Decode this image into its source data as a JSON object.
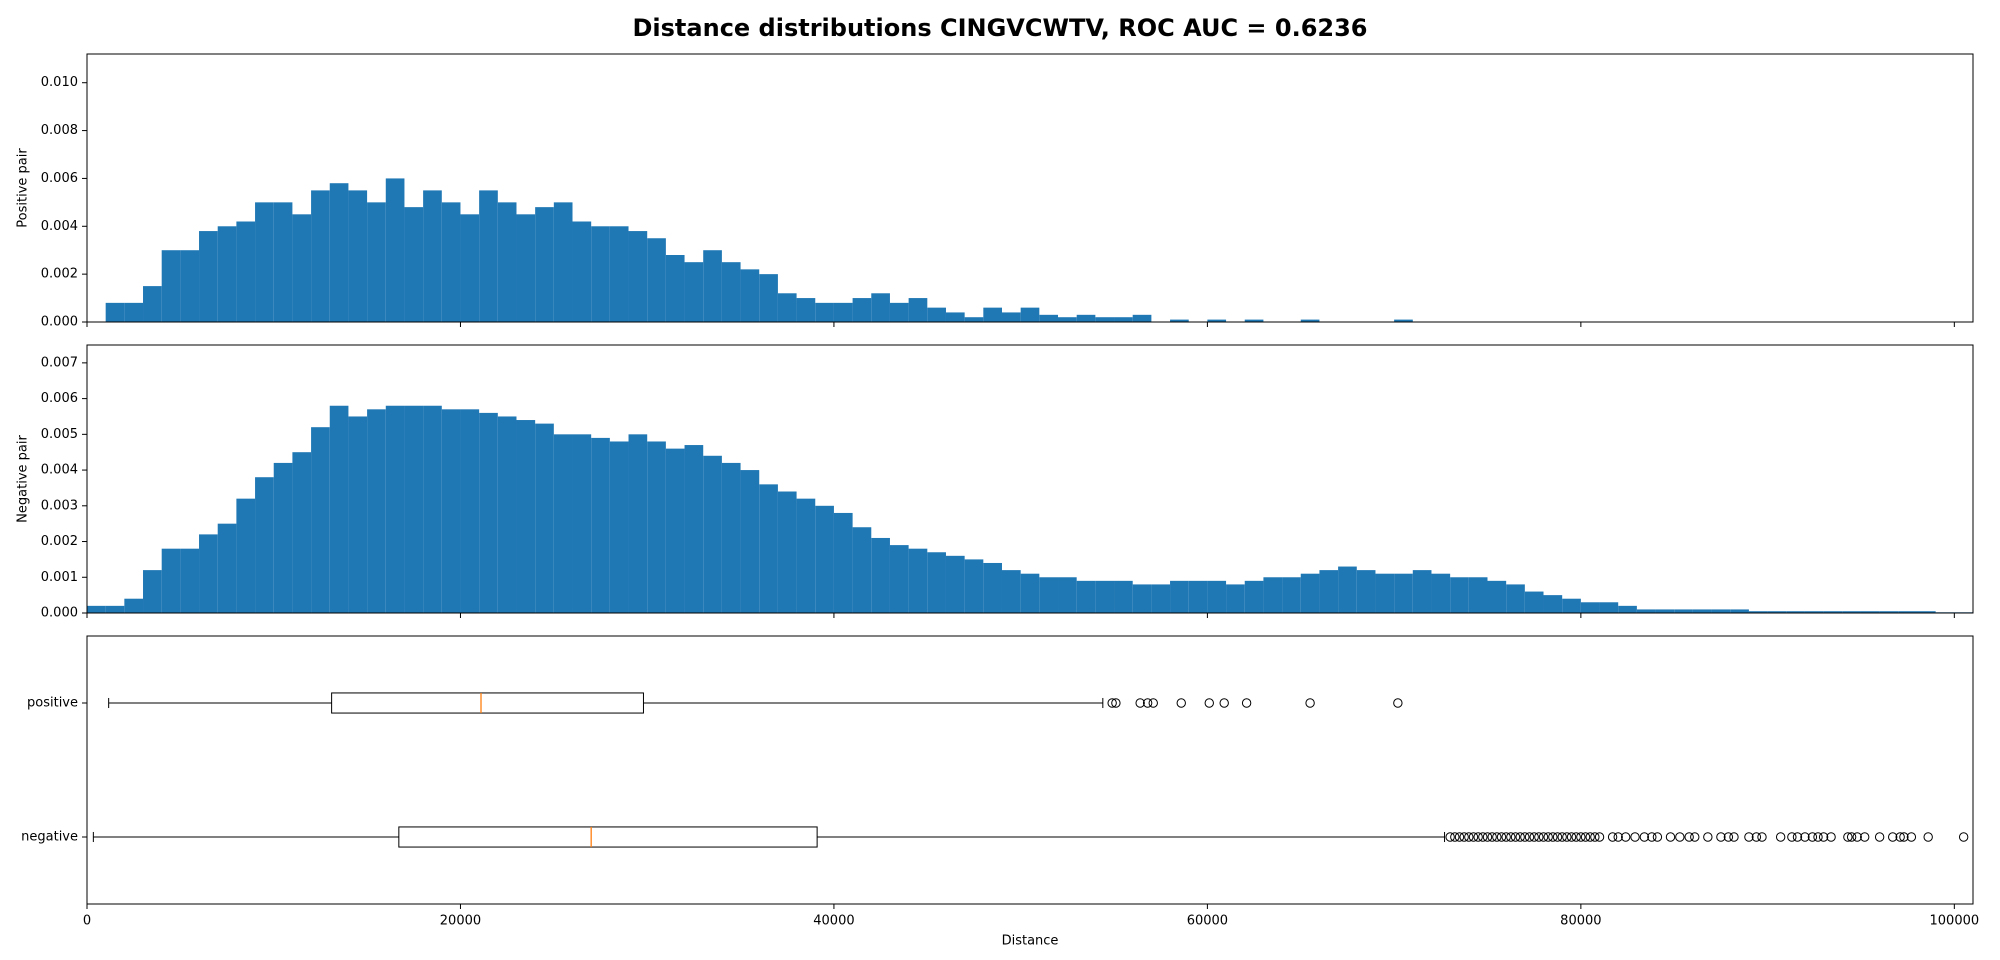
{
  "title": "Distance distributions CINGVCWTV, ROC AUC = 0.6236",
  "chart_data": [
    {
      "type": "histogram",
      "ylabel": "Positive pair",
      "color": "#1f77b4",
      "bins": [
        1000,
        2000,
        3000,
        4000,
        5000,
        6000,
        7000,
        8000,
        9000,
        10000,
        11000,
        12000,
        13000,
        14000,
        15000,
        16000,
        17000,
        18000,
        19000,
        20000,
        21000,
        22000,
        23000,
        24000,
        25000,
        26000,
        27000,
        28000,
        29000,
        30000,
        31000,
        32000,
        33000,
        34000,
        35000,
        36000,
        37000,
        38000,
        39000,
        40000,
        41000,
        42000,
        43000,
        44000,
        45000,
        46000,
        47000,
        48000,
        49000,
        50000,
        51000,
        52000,
        53000,
        54000,
        55000,
        56000,
        57000,
        58000,
        59000,
        60000,
        61000,
        62000,
        63000,
        64000,
        65000,
        66000,
        67000,
        68000,
        69000,
        70000,
        71000
      ],
      "values": [
        0.0008,
        0.0008,
        0.0015,
        0.003,
        0.003,
        0.0038,
        0.004,
        0.0042,
        0.005,
        0.005,
        0.0045,
        0.0055,
        0.0058,
        0.0055,
        0.005,
        0.006,
        0.0048,
        0.0055,
        0.005,
        0.0045,
        0.0055,
        0.005,
        0.0045,
        0.0048,
        0.005,
        0.0042,
        0.004,
        0.004,
        0.0038,
        0.0035,
        0.0028,
        0.0025,
        0.003,
        0.0025,
        0.0022,
        0.002,
        0.0012,
        0.001,
        0.0008,
        0.0008,
        0.001,
        0.0012,
        0.0008,
        0.001,
        0.0006,
        0.0004,
        0.0002,
        0.0006,
        0.0004,
        0.0006,
        0.0003,
        0.0002,
        0.0003,
        0.0002,
        0.0002,
        0.0003,
        0,
        0.0001,
        0,
        0.0001,
        0,
        0.0001,
        0,
        0,
        0.0001,
        0,
        0,
        0,
        0,
        0.0001
      ],
      "ylim": [
        0,
        0.0112
      ],
      "yticks": [
        {
          "value": 0,
          "label": "0.000"
        },
        {
          "value": 0.002,
          "label": "0.002"
        },
        {
          "value": 0.004,
          "label": "0.004"
        },
        {
          "value": 0.006,
          "label": "0.006"
        },
        {
          "value": 0.008,
          "label": "0.008"
        },
        {
          "value": 0.01,
          "label": "0.010"
        }
      ]
    },
    {
      "type": "histogram",
      "ylabel": "Negative pair",
      "color": "#1f77b4",
      "bins": [
        0,
        1000,
        2000,
        3000,
        4000,
        5000,
        6000,
        7000,
        8000,
        9000,
        10000,
        11000,
        12000,
        13000,
        14000,
        15000,
        16000,
        17000,
        18000,
        19000,
        20000,
        21000,
        22000,
        23000,
        24000,
        25000,
        26000,
        27000,
        28000,
        29000,
        30000,
        31000,
        32000,
        33000,
        34000,
        35000,
        36000,
        37000,
        38000,
        39000,
        40000,
        41000,
        42000,
        43000,
        44000,
        45000,
        46000,
        47000,
        48000,
        49000,
        50000,
        51000,
        52000,
        53000,
        54000,
        55000,
        56000,
        57000,
        58000,
        59000,
        60000,
        61000,
        62000,
        63000,
        64000,
        65000,
        66000,
        67000,
        68000,
        69000,
        70000,
        71000,
        72000,
        73000,
        74000,
        75000,
        76000,
        77000,
        78000,
        79000,
        80000,
        81000,
        82000,
        83000,
        84000,
        85000,
        86000,
        87000,
        88000,
        89000,
        90000,
        91000,
        92000,
        93000,
        94000,
        95000,
        96000,
        97000,
        98000,
        99000,
        100000,
        101000
      ],
      "values": [
        0.0002,
        0.0002,
        0.0004,
        0.0012,
        0.0018,
        0.0018,
        0.0022,
        0.0025,
        0.0032,
        0.0038,
        0.0042,
        0.0045,
        0.0052,
        0.0058,
        0.0055,
        0.0057,
        0.0058,
        0.0058,
        0.0058,
        0.0057,
        0.0057,
        0.0056,
        0.0055,
        0.0054,
        0.0053,
        0.005,
        0.005,
        0.0049,
        0.0048,
        0.005,
        0.0048,
        0.0046,
        0.0047,
        0.0044,
        0.0042,
        0.004,
        0.0036,
        0.0034,
        0.0032,
        0.003,
        0.0028,
        0.0024,
        0.0021,
        0.0019,
        0.0018,
        0.0017,
        0.0016,
        0.0015,
        0.0014,
        0.0012,
        0.0011,
        0.001,
        0.001,
        0.0009,
        0.0009,
        0.0009,
        0.0008,
        0.0008,
        0.0009,
        0.0009,
        0.0009,
        0.0008,
        0.0009,
        0.001,
        0.001,
        0.0011,
        0.0012,
        0.0013,
        0.0012,
        0.0011,
        0.0011,
        0.0012,
        0.0011,
        0.001,
        0.001,
        0.0009,
        0.0008,
        0.0006,
        0.0005,
        0.0004,
        0.0003,
        0.0003,
        0.0002,
        0.0001,
        0.0001,
        0.0001,
        0.0001,
        0.0001,
        0.0001,
        5e-05,
        5e-05,
        5e-05,
        5e-05,
        5e-05,
        5e-05,
        5e-05,
        5e-05,
        5e-05,
        5e-05,
        2e-05,
        2e-05
      ],
      "ylim": [
        0,
        0.0075
      ],
      "yticks": [
        {
          "value": 0,
          "label": "0.000"
        },
        {
          "value": 0.001,
          "label": "0.001"
        },
        {
          "value": 0.002,
          "label": "0.002"
        },
        {
          "value": 0.003,
          "label": "0.003"
        },
        {
          "value": 0.004,
          "label": "0.004"
        },
        {
          "value": 0.005,
          "label": "0.005"
        },
        {
          "value": 0.006,
          "label": "0.006"
        },
        {
          "value": 0.007,
          "label": "0.007"
        }
      ]
    },
    {
      "type": "boxplot",
      "xlabel": "Distance",
      "categories": [
        "negative",
        "positive"
      ],
      "xlim": [
        0,
        101000
      ],
      "xticks": [
        0,
        20000,
        40000,
        60000,
        80000,
        100000
      ],
      "ylim": [
        0.5,
        2.5
      ],
      "box_color": "#000000",
      "median_color": "#ff7f0e",
      "boxes": [
        {
          "whislo": 340,
          "q1": 16700,
          "med": 27000,
          "q3": 39100,
          "whishi": 72700,
          "fliers": [
            73000,
            73250,
            73500,
            73750,
            74000,
            74250,
            74500,
            74750,
            75000,
            75250,
            75500,
            75750,
            76000,
            76250,
            76500,
            76750,
            77000,
            77250,
            77500,
            77750,
            78000,
            78250,
            78500,
            78750,
            79000,
            79250,
            79500,
            79750,
            80000,
            80250,
            80500,
            80750,
            81000,
            81700,
            82000,
            82400,
            82900,
            83400,
            83800,
            84100,
            84800,
            85300,
            85800,
            86100,
            86800,
            87500,
            87900,
            88200,
            89000,
            89400,
            89700,
            90700,
            91300,
            91600,
            92000,
            92400,
            92700,
            93000,
            93400,
            94300,
            94500,
            94800,
            95200,
            96000,
            96700,
            97100,
            97300,
            97700,
            98600,
            100500
          ]
        },
        {
          "whislo": 1160,
          "q1": 13100,
          "med": 21100,
          "q3": 29800,
          "whishi": 54400,
          "fliers": [
            54900,
            55100,
            56400,
            56800,
            57100,
            58600,
            60100,
            60900,
            62100,
            65500,
            70200
          ]
        }
      ]
    }
  ]
}
